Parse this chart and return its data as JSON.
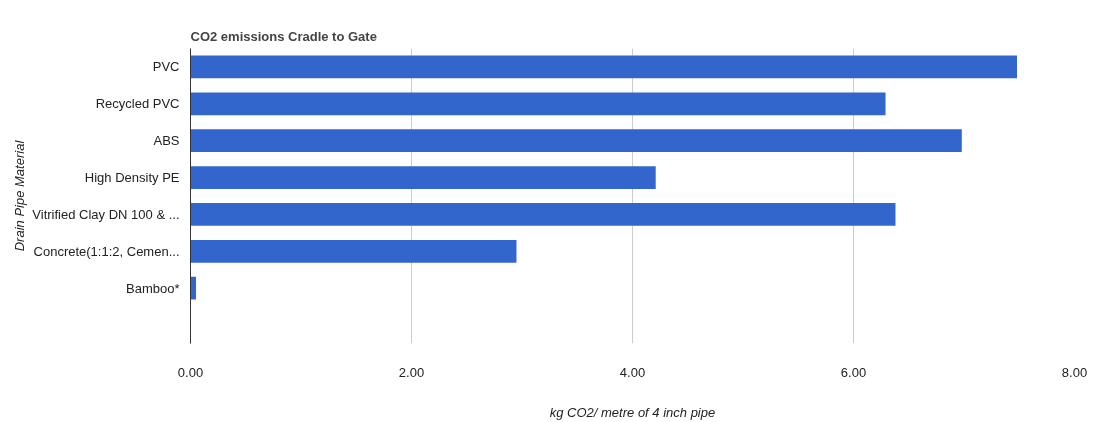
{
  "chart_data": {
    "type": "bar",
    "orientation": "horizontal",
    "title": "CO2 emissions Cradle to Gate",
    "xlabel": "kg CO2/ metre of 4 inch pipe",
    "ylabel": "Drain Pipe Material",
    "categories": [
      "PVC",
      "Recycled PVC",
      "ABS",
      "High Density PE",
      "Vitrified Clay DN 100 & ...",
      "Concrete(1:1:2, Cemen...",
      "Bamboo*",
      null
    ],
    "values": [
      7.48,
      6.29,
      6.98,
      4.21,
      6.38,
      2.95,
      0.05,
      null
    ],
    "color": "#3366cc",
    "xlim": [
      0,
      8
    ],
    "xticks": [
      {
        "value": 0,
        "label": "0.00"
      },
      {
        "value": 2,
        "label": "2.00"
      },
      {
        "value": 4,
        "label": "4.00"
      },
      {
        "value": 6,
        "label": "6.00"
      },
      {
        "value": 8,
        "label": "8.00"
      }
    ],
    "grid": "x"
  }
}
